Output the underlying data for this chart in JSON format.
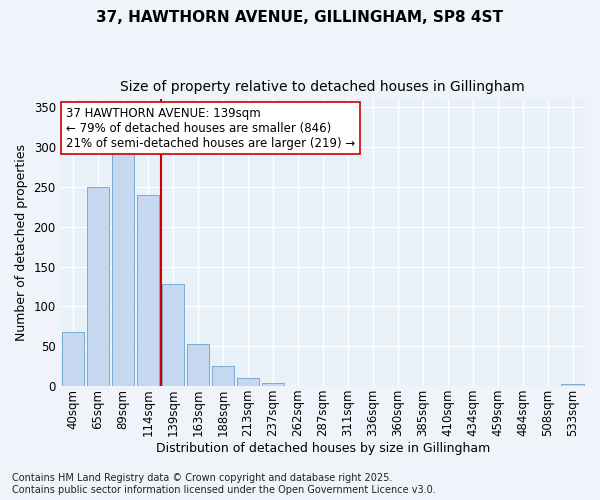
{
  "title_line1": "37, HAWTHORN AVENUE, GILLINGHAM, SP8 4ST",
  "title_line2": "Size of property relative to detached houses in Gillingham",
  "xlabel": "Distribution of detached houses by size in Gillingham",
  "ylabel": "Number of detached properties",
  "categories": [
    "40sqm",
    "65sqm",
    "89sqm",
    "114sqm",
    "139sqm",
    "163sqm",
    "188sqm",
    "213sqm",
    "237sqm",
    "262sqm",
    "287sqm",
    "311sqm",
    "336sqm",
    "360sqm",
    "385sqm",
    "410sqm",
    "434sqm",
    "459sqm",
    "484sqm",
    "508sqm",
    "533sqm"
  ],
  "values": [
    68,
    250,
    293,
    240,
    128,
    53,
    25,
    10,
    4,
    0,
    0,
    0,
    0,
    0,
    0,
    0,
    0,
    0,
    0,
    0,
    2
  ],
  "bar_color": "#c5d8f0",
  "bar_edge_color": "#7aaad4",
  "vline_x": 3.5,
  "vline_color": "#cc0000",
  "annotation_text": "37 HAWTHORN AVENUE: 139sqm\n← 79% of detached houses are smaller (846)\n21% of semi-detached houses are larger (219) →",
  "ylim": [
    0,
    360
  ],
  "yticks": [
    0,
    50,
    100,
    150,
    200,
    250,
    300,
    350
  ],
  "footer_text": "Contains HM Land Registry data © Crown copyright and database right 2025.\nContains public sector information licensed under the Open Government Licence v3.0.",
  "fig_bg_color": "#f0f4fa",
  "plot_bg_color": "#e8f0f8",
  "grid_color": "#ffffff",
  "title_fontsize": 11,
  "subtitle_fontsize": 10,
  "axis_label_fontsize": 9,
  "tick_fontsize": 8.5,
  "annotation_fontsize": 8.5,
  "footer_fontsize": 7
}
